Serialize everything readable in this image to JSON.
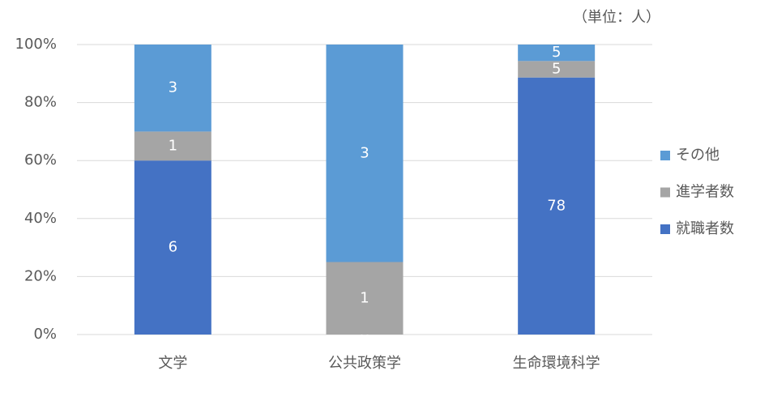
{
  "chart_data": {
    "type": "bar",
    "stacking": "percent",
    "note": "（単位：人）",
    "categories": [
      "文学",
      "公共政策学",
      "生命環境科学"
    ],
    "series": [
      {
        "name": "就職者数",
        "color": "#4472c4",
        "values": [
          6,
          0,
          78
        ]
      },
      {
        "name": "進学者数",
        "color": "#a5a5a5",
        "values": [
          1,
          1,
          5
        ]
      },
      {
        "name": "その他",
        "color": "#5b9bd5",
        "values": [
          3,
          3,
          5
        ]
      }
    ],
    "ylim": [
      0,
      100
    ],
    "yticks": [
      {
        "value": 0,
        "label": "0%"
      },
      {
        "value": 20,
        "label": "20%"
      },
      {
        "value": 40,
        "label": "40%"
      },
      {
        "value": 60,
        "label": "60%"
      },
      {
        "value": 80,
        "label": "80%"
      },
      {
        "value": 100,
        "label": "100%"
      }
    ],
    "grid": true,
    "legend": "right"
  }
}
